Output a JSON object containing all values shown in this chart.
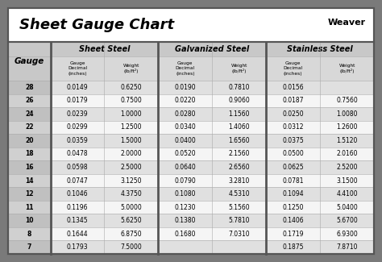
{
  "title": "Sheet Gauge Chart",
  "bg_outer": "#7a7a7a",
  "bg_inner": "#ffffff",
  "row_bg_odd": "#e0e0e0",
  "row_bg_even": "#f5f5f5",
  "header_bg": "#c8c8c8",
  "divider_color": "#555555",
  "border_color": "#555555",
  "cell_border": "#aaaaaa",
  "gauges": [
    "28",
    "26",
    "24",
    "22",
    "20",
    "18",
    "16",
    "14",
    "12",
    "11",
    "10",
    "8",
    "7"
  ],
  "sheet_steel_decimal": [
    "0.0149",
    "0.0179",
    "0.0239",
    "0.0299",
    "0.0359",
    "0.0478",
    "0.0598",
    "0.0747",
    "0.1046",
    "0.1196",
    "0.1345",
    "0.1644",
    "0.1793"
  ],
  "sheet_steel_weight": [
    "0.6250",
    "0.7500",
    "1.0000",
    "1.2500",
    "1.5000",
    "2.0000",
    "2.5000",
    "3.1250",
    "4.3750",
    "5.0000",
    "5.6250",
    "6.8750",
    "7.5000"
  ],
  "galv_steel_decimal": [
    "0.0190",
    "0.0220",
    "0.0280",
    "0.0340",
    "0.0400",
    "0.0520",
    "0.0640",
    "0.0790",
    "0.1080",
    "0.1230",
    "0.1380",
    "0.1680",
    ""
  ],
  "galv_steel_weight": [
    "0.7810",
    "0.9060",
    "1.1560",
    "1.4060",
    "1.6560",
    "2.1560",
    "2.6560",
    "3.2810",
    "4.5310",
    "5.1560",
    "5.7810",
    "7.0310",
    ""
  ],
  "stainless_decimal": [
    "0.0156",
    "0.0187",
    "0.0250",
    "0.0312",
    "0.0375",
    "0.0500",
    "0.0625",
    "0.0781",
    "0.1094",
    "0.1250",
    "0.1406",
    "0.1719",
    "0.1875"
  ],
  "stainless_weight": [
    "",
    "0.7560",
    "1.0080",
    "1.2600",
    "1.5120",
    "2.0160",
    "2.5200",
    "3.1500",
    "4.4100",
    "5.0400",
    "5.6700",
    "6.9300",
    "7.8710"
  ]
}
